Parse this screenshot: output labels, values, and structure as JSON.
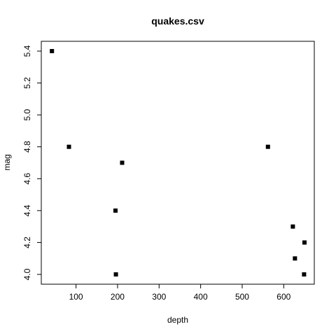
{
  "chart_data": {
    "type": "scatter",
    "title": "quakes.csv",
    "xlabel": "depth",
    "ylabel": "mag",
    "xlim": [
      40,
      650
    ],
    "ylim": [
      4.0,
      5.4
    ],
    "x_ticks": [
      100,
      200,
      300,
      400,
      500,
      600
    ],
    "y_ticks": [
      4.0,
      4.2,
      4.4,
      4.6,
      4.8,
      5.0,
      5.2,
      5.4
    ],
    "x_tick_labels": [
      "100",
      "200",
      "300",
      "400",
      "500",
      "600"
    ],
    "y_tick_labels": [
      "4.0",
      "4.2",
      "4.4",
      "4.6",
      "4.8",
      "5.0",
      "5.2",
      "5.4"
    ],
    "grid": false,
    "marker": "filled-square",
    "colors": {
      "marker": "#000000",
      "axis": "#000000",
      "background": "#ffffff"
    },
    "points": [
      {
        "x": 42,
        "y": 5.4
      },
      {
        "x": 83,
        "y": 4.8
      },
      {
        "x": 195,
        "y": 4.4
      },
      {
        "x": 196,
        "y": 4.0
      },
      {
        "x": 211,
        "y": 4.7
      },
      {
        "x": 562,
        "y": 4.8
      },
      {
        "x": 622,
        "y": 4.3
      },
      {
        "x": 627,
        "y": 4.1
      },
      {
        "x": 649,
        "y": 4.0
      },
      {
        "x": 650,
        "y": 4.2
      }
    ]
  }
}
